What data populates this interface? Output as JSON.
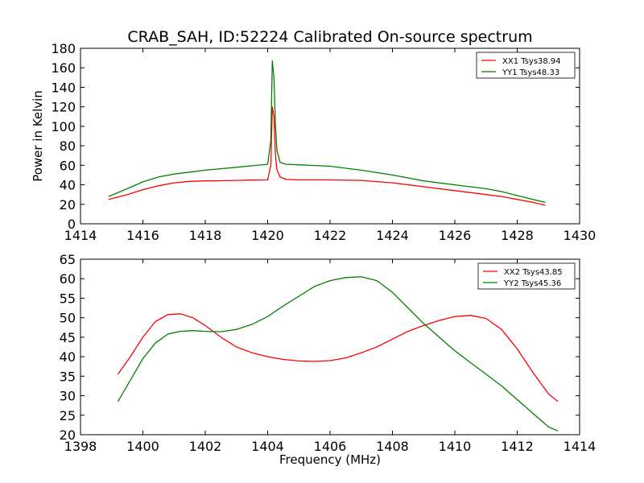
{
  "chart_data": [
    {
      "type": "line",
      "title": "CRAB_SAH, ID:52224 Calibrated On-source spectrum",
      "xlabel": "",
      "ylabel": "Power in Kelvin",
      "xlim": [
        1414,
        1430
      ],
      "ylim": [
        0,
        180
      ],
      "xticks": [
        "1414",
        "1416",
        "1418",
        "1420",
        "1422",
        "1424",
        "1426",
        "1428",
        "1430"
      ],
      "yticks": [
        "0",
        "20",
        "40",
        "60",
        "80",
        "100",
        "120",
        "140",
        "160",
        "180"
      ],
      "grid": false,
      "legend_position": "top-right",
      "series": [
        {
          "name": "XX1 Tsys38.94",
          "color": "#ff0000",
          "x": [
            1414.9,
            1415.5,
            1416,
            1416.5,
            1417,
            1417.5,
            1418,
            1418.5,
            1419,
            1419.5,
            1420,
            1420.1,
            1420.15,
            1420.2,
            1420.25,
            1420.3,
            1420.4,
            1420.6,
            1421,
            1422,
            1423,
            1424,
            1425,
            1426,
            1427,
            1427.5,
            1428,
            1428.5,
            1428.9
          ],
          "y": [
            25,
            30,
            35,
            39,
            42,
            43.5,
            44,
            44.2,
            44.5,
            44.8,
            45,
            60,
            120,
            110,
            70,
            55,
            48,
            45.5,
            45,
            45,
            44.5,
            42,
            38,
            34,
            30,
            28,
            25,
            22,
            19
          ]
        },
        {
          "name": "YY1 Tsys48.33",
          "color": "#008000",
          "x": [
            1414.9,
            1415.5,
            1416,
            1416.5,
            1417,
            1417.5,
            1418,
            1418.5,
            1419,
            1419.5,
            1420,
            1420.1,
            1420.15,
            1420.2,
            1420.25,
            1420.3,
            1420.4,
            1420.6,
            1421,
            1422,
            1423,
            1424,
            1425,
            1426,
            1427,
            1427.5,
            1428,
            1428.5,
            1428.9
          ],
          "y": [
            28,
            36,
            43,
            48,
            51,
            53,
            55,
            56.5,
            58,
            59.5,
            61,
            85,
            167,
            150,
            100,
            75,
            63,
            61,
            60.5,
            59,
            55,
            50,
            44,
            40,
            36,
            33,
            29,
            25,
            22
          ]
        }
      ]
    },
    {
      "type": "line",
      "title": "",
      "xlabel": "Frequency (MHz)",
      "ylabel": "",
      "xlim": [
        1398,
        1414
      ],
      "ylim": [
        20,
        65
      ],
      "xticks": [
        "1398",
        "1400",
        "1402",
        "1404",
        "1406",
        "1408",
        "1410",
        "1412",
        "1414"
      ],
      "yticks": [
        "20",
        "25",
        "30",
        "35",
        "40",
        "45",
        "50",
        "55",
        "60",
        "65"
      ],
      "grid": false,
      "legend_position": "top-right",
      "series": [
        {
          "name": "XX2 Tsys43.85",
          "color": "#ff0000",
          "x": [
            1399.2,
            1399.6,
            1400,
            1400.4,
            1400.8,
            1401.2,
            1401.6,
            1402,
            1402.5,
            1403,
            1403.5,
            1404,
            1404.5,
            1405,
            1405.5,
            1406,
            1406.5,
            1407,
            1407.5,
            1408,
            1408.5,
            1409,
            1409.5,
            1410,
            1410.5,
            1411,
            1411.5,
            1412,
            1412.5,
            1413,
            1413.3
          ],
          "y": [
            35.5,
            40,
            45,
            49,
            50.8,
            51,
            50,
            48,
            45,
            42.5,
            41,
            40,
            39.3,
            38.9,
            38.8,
            39,
            39.7,
            41,
            42.5,
            44.5,
            46.5,
            48,
            49.3,
            50.3,
            50.6,
            49.8,
            47,
            42,
            36,
            30.5,
            28.5
          ]
        },
        {
          "name": "YY2 Tsys45.36",
          "color": "#008000",
          "x": [
            1399.2,
            1399.6,
            1400,
            1400.4,
            1400.8,
            1401.2,
            1401.6,
            1402,
            1402.5,
            1403,
            1403.5,
            1404,
            1404.5,
            1405,
            1405.5,
            1406,
            1406.5,
            1407,
            1407.5,
            1408,
            1408.5,
            1409,
            1409.5,
            1410,
            1410.5,
            1411,
            1411.5,
            1412,
            1412.5,
            1413,
            1413.3
          ],
          "y": [
            28.5,
            34,
            39.5,
            43.5,
            45.8,
            46.5,
            46.7,
            46.5,
            46.4,
            47,
            48.3,
            50.3,
            53,
            55.5,
            58,
            59.5,
            60.3,
            60.5,
            59.5,
            56.5,
            52.5,
            48.5,
            45,
            41.5,
            38.5,
            35.5,
            32.5,
            29,
            25.5,
            22,
            21
          ]
        }
      ]
    }
  ]
}
